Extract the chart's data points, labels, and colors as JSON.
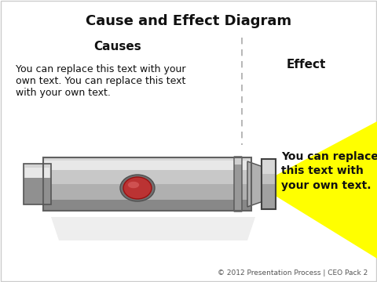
{
  "title": "Cause and Effect Diagram",
  "causes_label": "Causes",
  "effect_label": "Effect",
  "causes_text": "You can replace this text with your\nown text. You can replace this text\nwith your own text.",
  "effect_text": "You can replace\nthis text with\nyour own text.",
  "footer": "© 2012 Presentation Process | CEO Pack 2",
  "bg_color": "#ffffff",
  "title_color": "#111111",
  "text_color": "#111111",
  "dashed_line_color": "#aaaaaa",
  "beam_color": "#ffff00",
  "beam_color2": "#fffff0",
  "button_color": "#bb3333",
  "body_top": "#e8e8e8",
  "body_mid": "#c8c8c8",
  "body_bright": "#f0f0f0",
  "body_dark": "#888888",
  "body_edge": "#666666"
}
